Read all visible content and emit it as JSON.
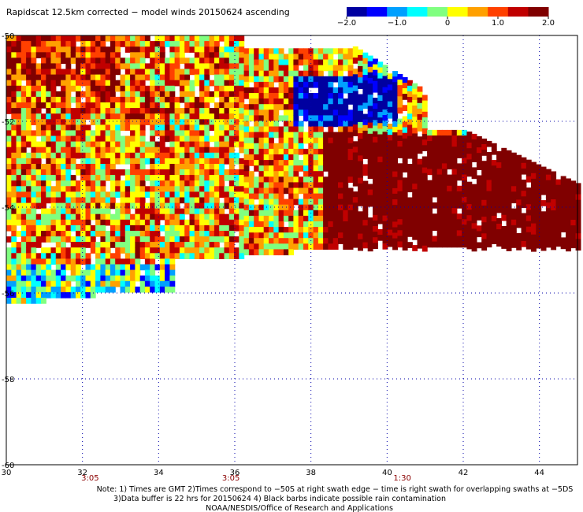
{
  "chart_data": {
    "type": "heatmap",
    "title": "Rapidscat 12.5km corrected − model winds 20150624 ascending",
    "xlim": [
      30,
      45
    ],
    "ylim": [
      -60,
      -50
    ],
    "x_ticks": [
      "30",
      "32",
      "34",
      "36",
      "38",
      "40",
      "42",
      "44"
    ],
    "y_ticks": [
      "-50",
      "-52",
      "-54",
      "-56",
      "-58",
      "-60"
    ],
    "colorbar": {
      "range": [
        -2.0,
        2.0
      ],
      "tick_labels": [
        "−2.0",
        "−1.0",
        "0",
        "1.0",
        "2.0"
      ],
      "tick_values": [
        -2.0,
        -1.0,
        0,
        1.0,
        2.0
      ],
      "colors": [
        "#0000a0",
        "#0000ff",
        "#00a0ff",
        "#00ffff",
        "#80ff80",
        "#ffff00",
        "#ffa000",
        "#ff4000",
        "#c00000",
        "#800000"
      ]
    },
    "time_labels": [
      {
        "text": "3:05",
        "lon": 32.2
      },
      {
        "text": "3:05",
        "lon": 35.9
      },
      {
        "text": "1:30",
        "lon": 40.4
      }
    ],
    "grid": true,
    "notes": [
      "Note: 1) Times are GMT 2)Times correspond to −50S at right swath edge − time is right swath for overlapping swaths at −5DS",
      "3)Data buffer is 22 hrs for 20150624 4) Black barbs indicate possible rain contamination",
      "NOAA/NESDIS/Office of Research and Applications"
    ]
  }
}
